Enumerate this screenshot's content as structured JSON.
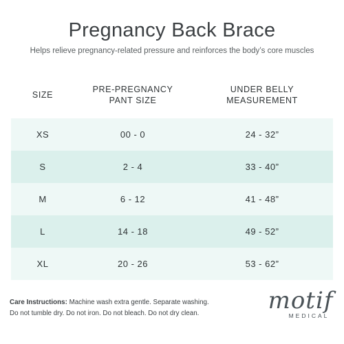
{
  "header": {
    "title": "Pregnancy Back Brace",
    "subtitle": "Helps relieve pregnancy-related pressure and reinforces the body’s core muscles"
  },
  "size_table": {
    "columns": [
      {
        "line1": "SIZE",
        "line2": ""
      },
      {
        "line1": "PRE-PREGNANCY",
        "line2": "PANT SIZE"
      },
      {
        "line1": "UNDER BELLY",
        "line2": "MEASUREMENT"
      }
    ],
    "rows": [
      {
        "size": "XS",
        "pant": "00 - 0",
        "belly": "24 - 32”"
      },
      {
        "size": "S",
        "pant": "2 - 4",
        "belly": "33 - 40”"
      },
      {
        "size": "M",
        "pant": "6 - 12",
        "belly": "41 - 48”"
      },
      {
        "size": "L",
        "pant": "14 - 18",
        "belly": "49 - 52”"
      },
      {
        "size": "XL",
        "pant": "20 - 26",
        "belly": "53 - 62”"
      }
    ],
    "colors": {
      "row_light": "#eef8f6",
      "row_dark": "#dbf0ec"
    }
  },
  "care": {
    "label": "Care Instructions:",
    "line1": " Machine wash extra gentle. Separate washing.",
    "line2": "Do not tumble dry. Do not iron. Do not bleach. Do not dry clean."
  },
  "logo": {
    "word": "motif",
    "sub": "MEDICAL"
  }
}
